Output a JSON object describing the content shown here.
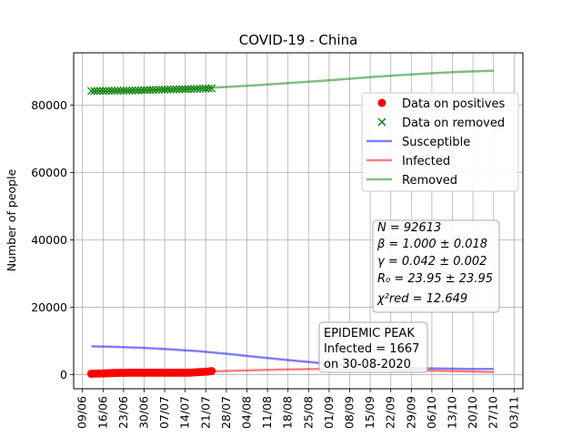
{
  "chart_data": {
    "type": "line",
    "title": "COVID-19 - China",
    "ylabel": "Number of people",
    "xlabel": "",
    "grid": true,
    "x_tick_labels": [
      "09/06",
      "16/06",
      "23/06",
      "30/06",
      "07/07",
      "14/07",
      "21/07",
      "28/07",
      "04/08",
      "11/08",
      "18/08",
      "25/08",
      "01/09",
      "08/09",
      "15/09",
      "22/09",
      "29/09",
      "06/10",
      "13/10",
      "20/10",
      "27/10",
      "03/11"
    ],
    "x_range_days": [
      -3,
      150
    ],
    "x_ticks_days_from_first_label": [
      0,
      7,
      14,
      21,
      28,
      35,
      42,
      49,
      56,
      63,
      70,
      77,
      84,
      91,
      98,
      105,
      112,
      119,
      126,
      133,
      140,
      147
    ],
    "y_ticks": [
      0,
      20000,
      40000,
      60000,
      80000
    ],
    "y_tick_labels": [
      "0",
      "20000",
      "40000",
      "60000",
      "80000"
    ],
    "ylim": [
      -4200,
      95500
    ],
    "legend": {
      "position": "upper-right",
      "entries": [
        {
          "label": "Data on positives",
          "marker": "circle",
          "color": "#ff0000"
        },
        {
          "label": "Data on removed",
          "marker": "x",
          "color": "#008000"
        },
        {
          "label": "Susceptible",
          "line": true,
          "color": "#0000ff"
        },
        {
          "label": "Infected",
          "line": true,
          "color": "#ff0000"
        },
        {
          "label": "Removed",
          "line": true,
          "color": "#008000"
        }
      ]
    },
    "series": [
      {
        "name": "Data on positives",
        "kind": "scatter-circle",
        "color": "#ff0000",
        "x": [
          3,
          4,
          5,
          6,
          7,
          8,
          9,
          10,
          11,
          12,
          13,
          14,
          15,
          16,
          17,
          18,
          19,
          20,
          21,
          22,
          23,
          24,
          25,
          26,
          27,
          28,
          29,
          30,
          31,
          32,
          33,
          34,
          35,
          36,
          37,
          38,
          39,
          40,
          41,
          42,
          43,
          44
        ],
        "y": [
          250,
          280,
          300,
          320,
          350,
          380,
          420,
          450,
          480,
          500,
          520,
          540,
          560,
          560,
          560,
          560,
          560,
          560,
          560,
          560,
          560,
          560,
          560,
          560,
          560,
          560,
          560,
          560,
          560,
          560,
          560,
          560,
          560,
          560,
          600,
          650,
          700,
          750,
          800,
          850,
          950,
          1050
        ]
      },
      {
        "name": "Data on removed",
        "kind": "scatter-x",
        "color": "#008000",
        "x": [
          3,
          4,
          5,
          6,
          7,
          8,
          9,
          10,
          11,
          12,
          13,
          14,
          15,
          16,
          17,
          18,
          19,
          20,
          21,
          22,
          23,
          24,
          25,
          26,
          27,
          28,
          29,
          30,
          31,
          32,
          33,
          34,
          35,
          36,
          37,
          38,
          39,
          40,
          41,
          42,
          43,
          44
        ],
        "y": [
          84150,
          84180,
          84200,
          84200,
          84210,
          84220,
          84230,
          84240,
          84250,
          84260,
          84270,
          84280,
          84290,
          84300,
          84310,
          84330,
          84350,
          84380,
          84410,
          84440,
          84470,
          84500,
          84520,
          84540,
          84560,
          84580,
          84600,
          84620,
          84640,
          84660,
          84680,
          84700,
          84720,
          84740,
          84760,
          84780,
          84800,
          84830,
          84860,
          84890,
          84920,
          84950
        ]
      },
      {
        "name": "Susceptible",
        "kind": "line",
        "color": "#0000ff",
        "x": [
          3,
          10,
          20,
          30,
          40,
          50,
          60,
          70,
          80,
          90,
          100,
          110,
          120,
          130,
          140
        ],
        "y": [
          8400,
          8250,
          7950,
          7500,
          6900,
          6100,
          5200,
          4300,
          3500,
          2800,
          2300,
          2000,
          1800,
          1700,
          1650
        ]
      },
      {
        "name": "Infected",
        "kind": "line",
        "color": "#ff0000",
        "x": [
          3,
          10,
          20,
          30,
          40,
          50,
          60,
          70,
          80,
          90,
          100,
          110,
          120,
          130,
          140
        ],
        "y": [
          250,
          350,
          500,
          680,
          880,
          1100,
          1350,
          1550,
          1667,
          1640,
          1520,
          1350,
          1150,
          950,
          750
        ]
      },
      {
        "name": "Removed",
        "kind": "line",
        "color": "#008000",
        "x": [
          3,
          10,
          20,
          30,
          40,
          50,
          60,
          70,
          80,
          90,
          100,
          110,
          120,
          130,
          140
        ],
        "y": [
          84100,
          84200,
          84400,
          84650,
          85000,
          85400,
          85900,
          86500,
          87100,
          87750,
          88400,
          89000,
          89500,
          89900,
          90200
        ]
      }
    ],
    "param_box": {
      "lines": [
        "N = 92613",
        "β = 1.000 ± 0.018",
        "γ = 0.042 ± 0.002",
        "R₀ = 23.95 ± 23.95",
        "χ²red = 12.649"
      ]
    },
    "peak_box": {
      "lines": [
        "EPIDEMIC PEAK",
        "Infected = 1667",
        "on 30-08-2020"
      ]
    }
  }
}
